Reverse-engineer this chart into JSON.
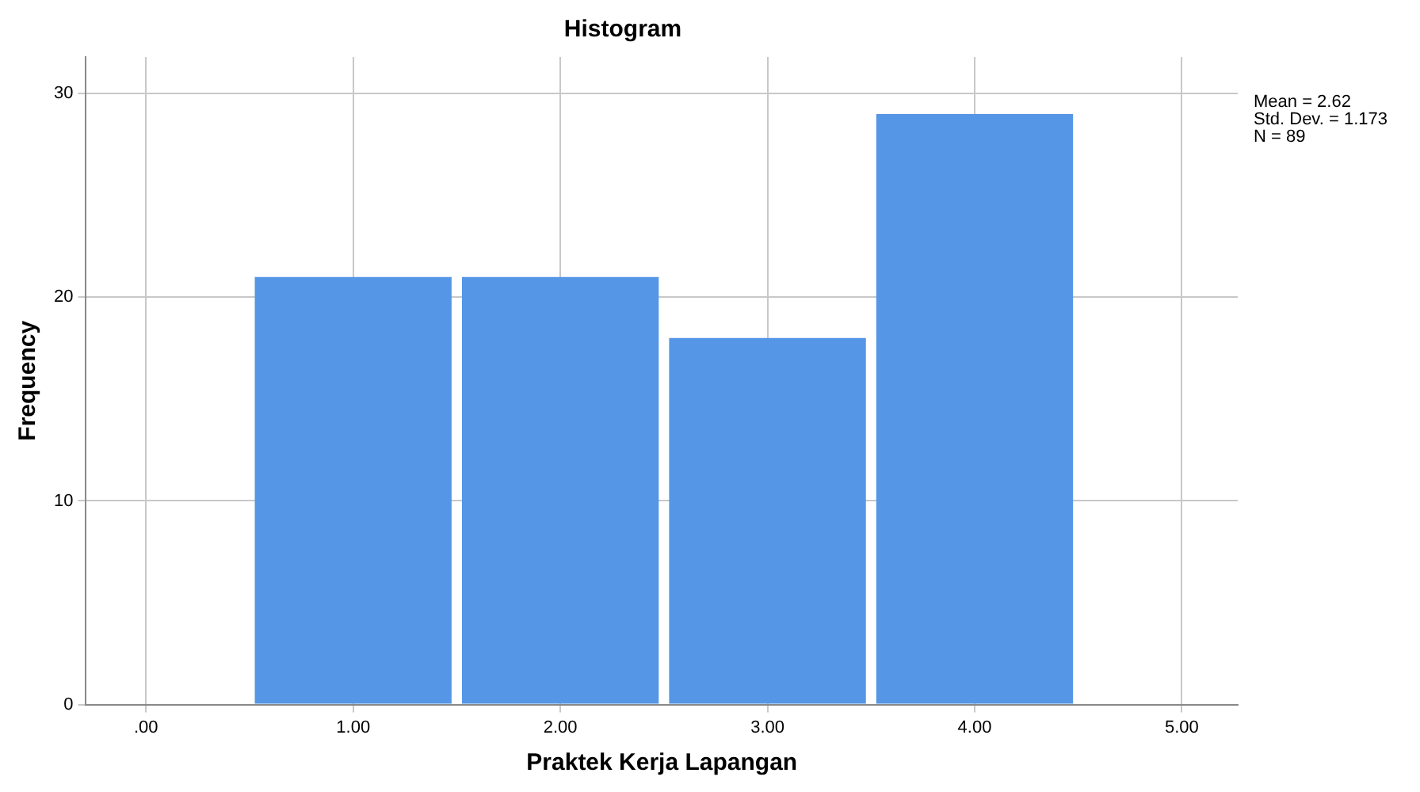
{
  "chart_data": {
    "type": "histogram",
    "title": "Histogram",
    "xlabel": "Praktek Kerja Lapangan",
    "ylabel": "Frequency",
    "bins": [
      0.5,
      1.5,
      2.5,
      3.5,
      4.5
    ],
    "values": [
      21,
      21,
      18,
      29
    ],
    "color": "#5596e6",
    "xlim": [
      -0.29,
      5.27
    ],
    "xticks": [
      {
        "value": 0,
        "label": ".00"
      },
      {
        "value": 1,
        "label": "1.00"
      },
      {
        "value": 2,
        "label": "2.00"
      },
      {
        "value": 3,
        "label": "3.00"
      },
      {
        "value": 4,
        "label": "4.00"
      },
      {
        "value": 5,
        "label": "5.00"
      }
    ],
    "ylim": [
      0,
      31.8
    ],
    "yticks": [
      0,
      10,
      20,
      30
    ],
    "grid": true,
    "annotations": [
      "Mean = 2.62",
      "Std. Dev. = 1.173",
      "N = 89"
    ]
  }
}
